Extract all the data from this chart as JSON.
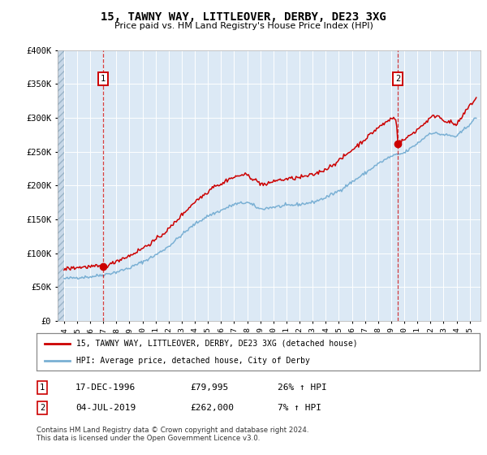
{
  "title": "15, TAWNY WAY, LITTLEOVER, DERBY, DE23 3XG",
  "subtitle": "Price paid vs. HM Land Registry's House Price Index (HPI)",
  "ylim": [
    0,
    400000
  ],
  "yticks": [
    0,
    50000,
    100000,
    150000,
    200000,
    250000,
    300000,
    350000,
    400000
  ],
  "ytick_labels": [
    "£0",
    "£50K",
    "£100K",
    "£150K",
    "£200K",
    "£250K",
    "£300K",
    "£350K",
    "£400K"
  ],
  "background_color": "#dce9f5",
  "grid_color": "#ffffff",
  "red_line_color": "#cc0000",
  "blue_line_color": "#7ab0d4",
  "sale1_date": 1996.96,
  "sale1_price": 79995,
  "sale1_label": "1",
  "sale2_date": 2019.5,
  "sale2_price": 262000,
  "sale2_label": "2",
  "legend_red": "15, TAWNY WAY, LITTLEOVER, DERBY, DE23 3XG (detached house)",
  "legend_blue": "HPI: Average price, detached house, City of Derby",
  "annotation1_date": "17-DEC-1996",
  "annotation1_price": "£79,995",
  "annotation1_hpi": "26% ↑ HPI",
  "annotation2_date": "04-JUL-2019",
  "annotation2_price": "£262,000",
  "annotation2_hpi": "7% ↑ HPI",
  "footer": "Contains HM Land Registry data © Crown copyright and database right 2024.\nThis data is licensed under the Open Government Licence v3.0.",
  "xmin": 1993.5,
  "xmax": 2025.8
}
